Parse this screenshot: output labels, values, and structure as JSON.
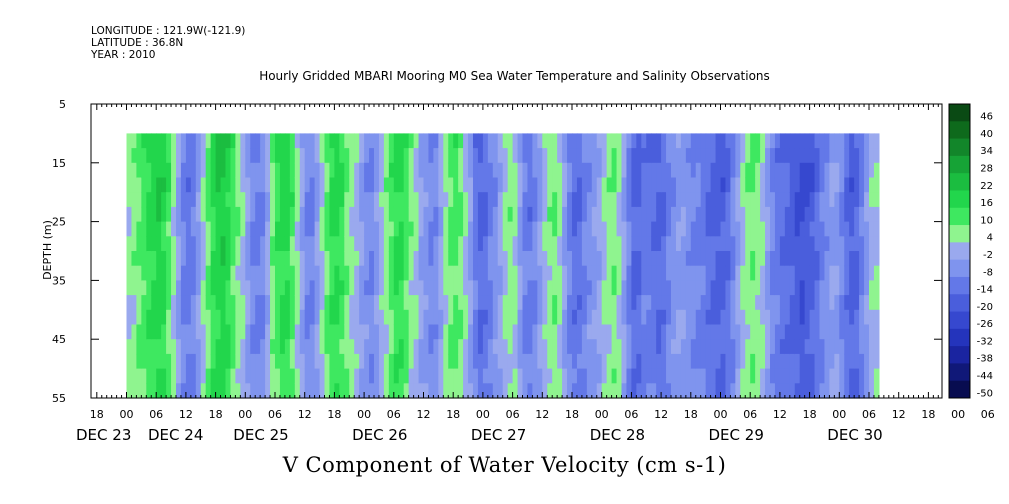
{
  "header": {
    "longitude": "LONGITUDE : 121.9W(-121.9)",
    "latitude": "LATITUDE : 36.8N",
    "year": "YEAR : 2010"
  },
  "chart_data": {
    "type": "heatmap",
    "title": "Hourly Gridded MBARI Mooring M0 Sea Water Temperature and Salinity Observations",
    "caption": "V Component of Water Velocity (cm s-1)",
    "ylabel": "DEPTH (m)",
    "ylim": [
      5,
      55
    ],
    "y_inverted": true,
    "y_ticks": [
      "5",
      "15",
      "25",
      "35",
      "45",
      "55"
    ],
    "data_depth_range": [
      10,
      55
    ],
    "x_hour_labels": [
      "18",
      "00",
      "06",
      "12",
      "18",
      "00",
      "06",
      "12",
      "18",
      "00",
      "06",
      "12",
      "18",
      "00",
      "06",
      "12",
      "18",
      "00",
      "06",
      "12",
      "18",
      "00",
      "06",
      "12",
      "18",
      "00",
      "06",
      "12",
      "18",
      "00",
      "06",
      "12",
      "18"
    ],
    "x_day_labels": [
      "DEC 23",
      "DEC 24",
      "DEC 25",
      "DEC 26",
      "DEC 27",
      "DEC 28",
      "DEC 29",
      "DEC 30"
    ],
    "colorbar_levels": [
      "46",
      "40",
      "34",
      "28",
      "22",
      "16",
      "10",
      "4",
      "-2",
      "-8",
      "-14",
      "-20",
      "-26",
      "-32",
      "-38",
      "-44",
      "-50"
    ],
    "colorbar_colors": [
      "#0a4a14",
      "#0e6a1c",
      "#12862a",
      "#16a336",
      "#1bbd40",
      "#22d64c",
      "#3ee860",
      "#8ff48f",
      "#9aa9ee",
      "#7f94ee",
      "#6378e8",
      "#4a5edc",
      "#3648cf",
      "#2434bc",
      "#1a24a0",
      "#101878",
      "#080c50"
    ],
    "v_profile_hourly": [
      6,
      8,
      11,
      14,
      18,
      20,
      22,
      20,
      14,
      6,
      -3,
      -9,
      -12,
      -10,
      -4,
      4,
      12,
      18,
      22,
      23,
      20,
      14,
      8,
      4,
      -2,
      -8,
      -11,
      -8,
      0,
      9,
      16,
      20,
      20,
      14,
      6,
      -2,
      -8,
      -9,
      -4,
      4,
      12,
      18,
      20,
      16,
      10,
      6,
      2,
      -2,
      -6,
      -8,
      -4,
      2,
      8,
      14,
      18,
      18,
      14,
      8,
      4,
      -1,
      -5,
      -8,
      -7,
      0,
      7,
      12,
      14,
      10,
      4,
      -4,
      -12,
      -16,
      -14,
      -10,
      -6,
      0,
      4,
      8,
      6,
      -2,
      -10,
      -12,
      -8,
      -4,
      2,
      8,
      10,
      6,
      -2,
      -10,
      -14,
      -14,
      -10,
      -6,
      -4,
      0,
      4,
      8,
      10,
      6,
      -2,
      -10,
      -16,
      -16,
      -12,
      -12,
      -14,
      -16,
      -14,
      -10,
      -6,
      -4,
      -4,
      -6,
      -8,
      -10,
      -12,
      -14,
      -16,
      -18,
      -18,
      -14,
      -8,
      -2,
      4,
      8,
      10,
      8,
      4,
      -2,
      -8,
      -12,
      -14,
      -16,
      -18,
      -20,
      -22,
      -20,
      -18,
      -14,
      -10,
      -6,
      -2,
      -4,
      -8,
      -14,
      -18,
      -16,
      -10,
      -4,
      2,
      4
    ]
  }
}
